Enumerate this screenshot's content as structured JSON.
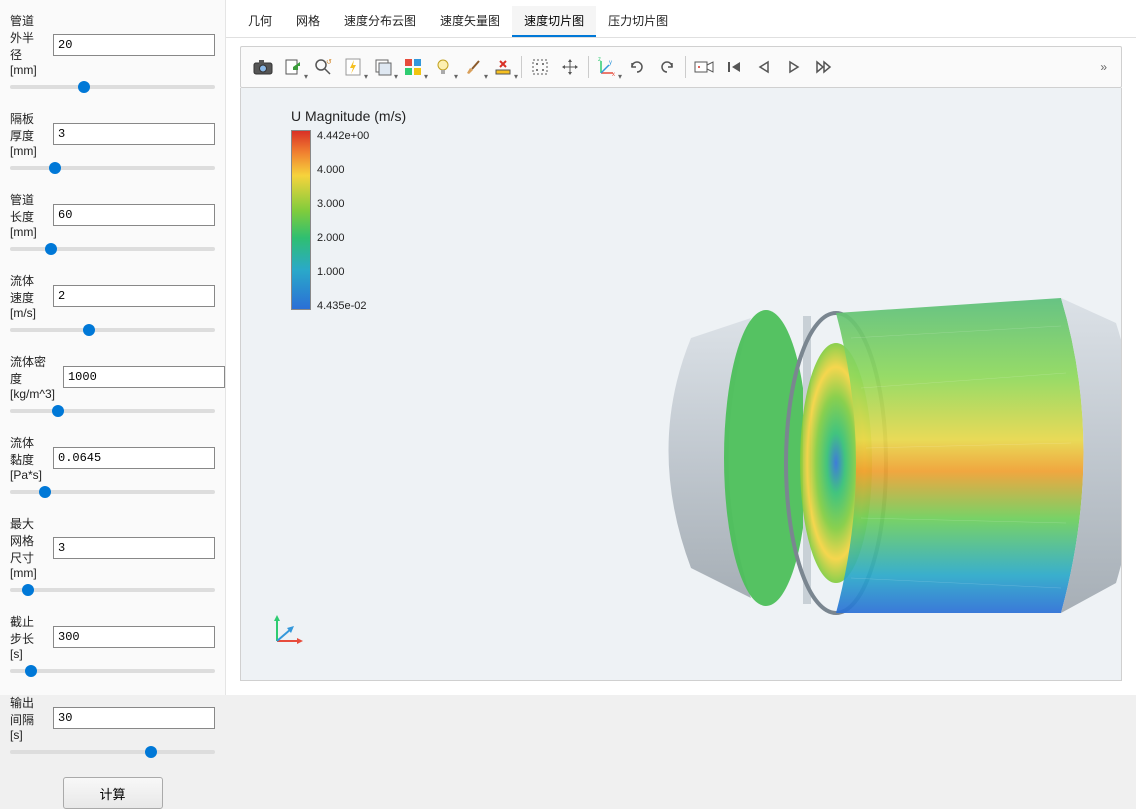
{
  "params": [
    {
      "label": "管道外半径[mm]",
      "value": "20",
      "slider": 35
    },
    {
      "label": "隔板厚度[mm]",
      "value": "3",
      "slider": 20
    },
    {
      "label": "管道长度[mm]",
      "value": "60",
      "slider": 18
    },
    {
      "label": "流体速度[m/s]",
      "value": "2",
      "slider": 38
    },
    {
      "label": "流体密度[kg/m^3]",
      "value": "1000",
      "slider": 22
    },
    {
      "label": "流体黏度[Pa*s]",
      "value": "0.0645",
      "slider": 15
    },
    {
      "label": "最大网格尺寸[mm]",
      "value": "3",
      "slider": 6
    },
    {
      "label": "截止步长[s]",
      "value": "300",
      "slider": 8
    },
    {
      "label": "输出间隔[s]",
      "value": "30",
      "slider": 70
    }
  ],
  "calc_label": "计算",
  "tabs": [
    {
      "label": "几何"
    },
    {
      "label": "网格"
    },
    {
      "label": "速度分布云图"
    },
    {
      "label": "速度矢量图"
    },
    {
      "label": "速度切片图",
      "active": true
    },
    {
      "label": "压力切片图"
    }
  ],
  "legend": {
    "title": "U Magnitude (m/s)",
    "ticks": [
      "4.442e+00",
      "4.000",
      "3.000",
      "2.000",
      "1.000",
      "4.435e-02"
    ]
  },
  "toolbar_overflow": "»"
}
